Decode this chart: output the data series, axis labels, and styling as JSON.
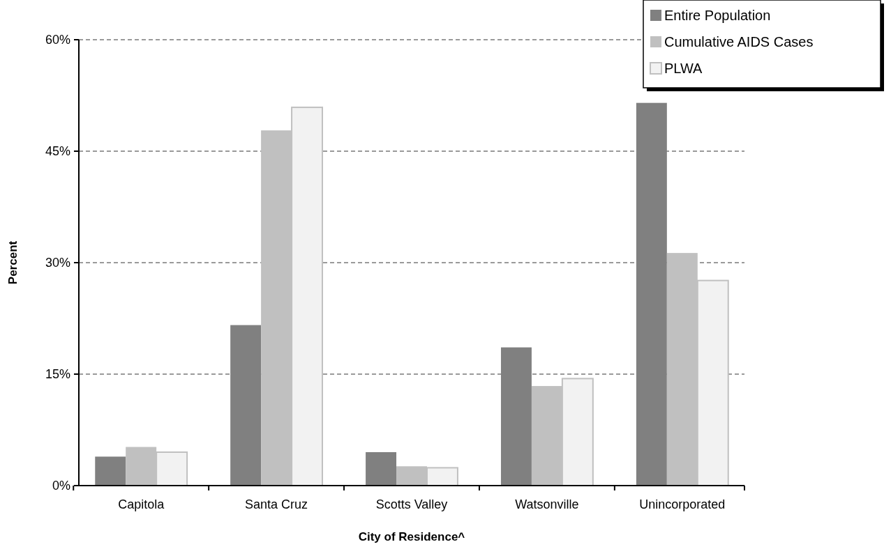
{
  "chart_data": {
    "type": "bar",
    "xlabel": "City of Residence^",
    "ylabel": "Percent",
    "categories": [
      "Capitola",
      "Santa Cruz",
      "Scotts Valley",
      "Watsonville",
      "Unincorporated"
    ],
    "series": [
      {
        "name": "Entire Population",
        "color": "#808080",
        "values": [
          3.9,
          21.6,
          4.5,
          18.6,
          51.5
        ]
      },
      {
        "name": "Cumulative AIDS Cases",
        "color": "#c0c0c0",
        "values": [
          5.2,
          47.8,
          2.6,
          13.4,
          31.3
        ]
      },
      {
        "name": "PLWA",
        "color": "#f2f2f2",
        "values": [
          4.5,
          50.9,
          2.4,
          14.4,
          27.6
        ]
      }
    ],
    "ylim": [
      0,
      60
    ],
    "yticks": [
      {
        "value": 0,
        "label": "0%"
      },
      {
        "value": 15,
        "label": "15%"
      },
      {
        "value": 30,
        "label": "30%"
      },
      {
        "value": 45,
        "label": "45%"
      },
      {
        "value": 60,
        "label": "60%"
      }
    ],
    "grid": "y",
    "legend": "top right"
  }
}
